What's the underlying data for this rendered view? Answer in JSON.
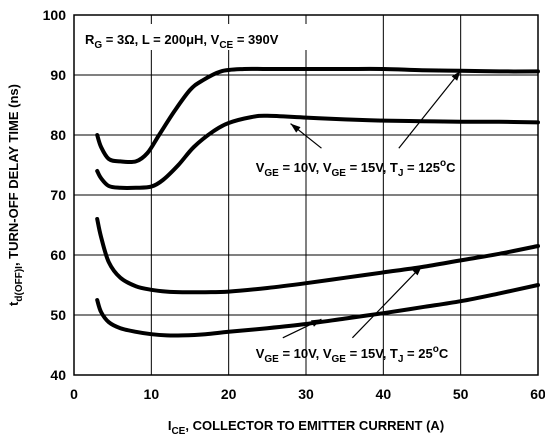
{
  "chart_data": {
    "type": "line",
    "title": "",
    "xlabel": {
      "main": "I",
      "sub": "CE",
      "rest": ", COLLECTOR TO EMITTER CURRENT (A)"
    },
    "ylabel": {
      "main": "t",
      "sub": "d(OFF)I",
      "rest": ", TURN-OFF DELAY TIME (ns)"
    },
    "xlim": [
      0,
      60
    ],
    "ylim": [
      40,
      100
    ],
    "xticks": [
      0,
      10,
      20,
      30,
      40,
      50,
      60
    ],
    "yticks": [
      40,
      50,
      60,
      70,
      80,
      90,
      100
    ],
    "grid": true,
    "conditions": [
      {
        "t": "R"
      },
      {
        "t": "G",
        "sub": true
      },
      {
        "t": " = 3Ω, L = 200μH, V"
      },
      {
        "t": "CE",
        "sub": true
      },
      {
        "t": " = 390V"
      }
    ],
    "annotations": [
      {
        "name": "annotation-125c",
        "parts": [
          {
            "t": "V"
          },
          {
            "t": "GE",
            "sub": true
          },
          {
            "t": " = 10V, V"
          },
          {
            "t": "GE",
            "sub": true
          },
          {
            "t": " = 15V, T"
          },
          {
            "t": "J",
            "sub": true
          },
          {
            "t": " = 125"
          },
          {
            "t": "o",
            "sup": true
          },
          {
            "t": "C"
          }
        ],
        "anchor": [
          23.5,
          73.8
        ],
        "arrows": [
          {
            "from": [
              32,
              77.8
            ],
            "to": [
              28,
              81.9
            ]
          },
          {
            "from": [
              42,
              77.8
            ],
            "to": [
              50,
              90.7
            ]
          }
        ]
      },
      {
        "name": "annotation-25c",
        "parts": [
          {
            "t": "V"
          },
          {
            "t": "GE",
            "sub": true
          },
          {
            "t": " = 10V, V"
          },
          {
            "t": "GE",
            "sub": true
          },
          {
            "t": " = 15V, T"
          },
          {
            "t": "J",
            "sub": true
          },
          {
            "t": " = 25"
          },
          {
            "t": "o",
            "sup": true
          },
          {
            "t": "C"
          }
        ],
        "anchor": [
          23.5,
          42.8
        ],
        "arrows": [
          {
            "from": [
              27,
              46.2
            ],
            "to": [
              32,
              49.3
            ]
          },
          {
            "from": [
              36,
              46.2
            ],
            "to": [
              45,
              58.2
            ]
          }
        ]
      }
    ],
    "series": [
      {
        "name": "",
        "x": [
          3,
          3.5,
          4.5,
          6,
          8,
          9.5,
          11,
          13,
          15,
          16.5,
          19,
          22,
          25,
          30,
          35,
          40,
          45,
          50,
          55,
          60
        ],
        "values": [
          80,
          78,
          76,
          75.6,
          75.6,
          77,
          80,
          84,
          87.5,
          89,
          90.6,
          91,
          91,
          91,
          91,
          91,
          90.8,
          90.7,
          90.6,
          90.6
        ]
      },
      {
        "name": "",
        "x": [
          3,
          3.5,
          4.5,
          6,
          8,
          10,
          11.5,
          13.5,
          15.5,
          18,
          20,
          23,
          25,
          30,
          35,
          40,
          45,
          50,
          55,
          60
        ],
        "values": [
          74,
          72.8,
          71.5,
          71.2,
          71.2,
          71.4,
          72.5,
          75,
          78,
          80.6,
          82,
          83,
          83.2,
          82.9,
          82.6,
          82.4,
          82.3,
          82.2,
          82.2,
          82.1
        ]
      },
      {
        "name": "",
        "x": [
          3,
          3.5,
          4.5,
          6,
          8,
          10,
          12,
          14,
          17,
          20,
          25,
          30,
          35,
          40,
          45,
          50,
          55,
          60
        ],
        "values": [
          66,
          63,
          58.8,
          56.2,
          54.8,
          54.2,
          53.9,
          53.8,
          53.8,
          53.9,
          54.5,
          55.3,
          56.2,
          57.1,
          58,
          59.1,
          60.2,
          61.5
        ]
      },
      {
        "name": "",
        "x": [
          3,
          3.5,
          4.5,
          6,
          8,
          10,
          12,
          14,
          17,
          20,
          25,
          30,
          35,
          40,
          45,
          50,
          55,
          60
        ],
        "values": [
          52.5,
          50.5,
          48.8,
          47.8,
          47.2,
          46.8,
          46.6,
          46.6,
          46.8,
          47.2,
          47.8,
          48.5,
          49.4,
          50.3,
          51.3,
          52.3,
          53.6,
          55
        ]
      }
    ]
  }
}
